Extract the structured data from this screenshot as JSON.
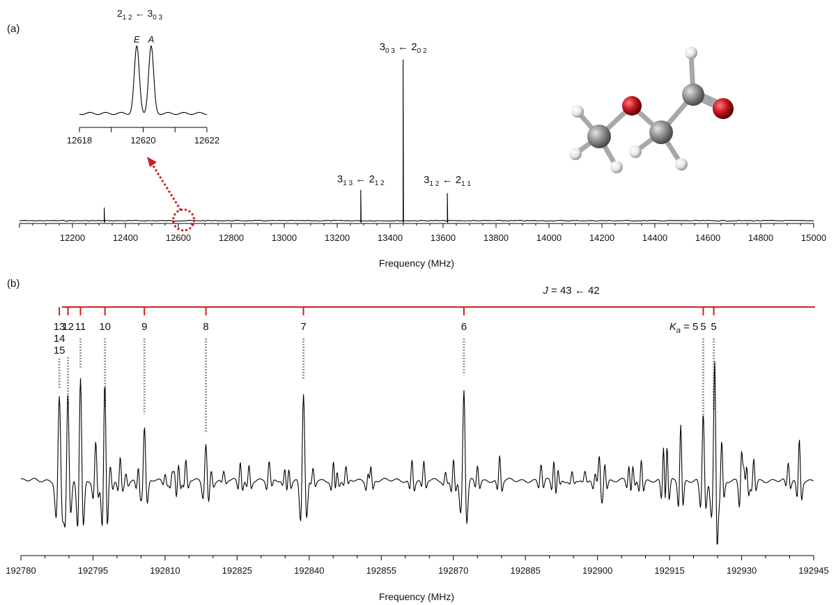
{
  "chart_data": [
    {
      "type": "line",
      "panel_label": "(a)",
      "xlabel": "Frequency (MHz)",
      "ylabel": "",
      "xlim": [
        12000,
        15000
      ],
      "x_ticks": [
        12200,
        12400,
        12600,
        12800,
        13000,
        13200,
        13400,
        13600,
        13800,
        14000,
        14200,
        14400,
        14600,
        14800,
        15000
      ],
      "grid": false,
      "peaks": [
        {
          "x": 12320,
          "y": 0.08
        },
        {
          "x": 13289,
          "y": 0.19
        },
        {
          "x": 13449,
          "y": 1.0
        },
        {
          "x": 13616,
          "y": 0.17
        }
      ],
      "annotations": [
        {
          "x": 13449,
          "label": "3",
          "sub": "0 3",
          "mid": " ← 2",
          "sub2": "0 2"
        },
        {
          "x": 13289,
          "label": "3",
          "sub": "1 3",
          "mid": " ← 2",
          "sub2": "1 2"
        },
        {
          "x": 13616,
          "label": "3",
          "sub": "1 2",
          "mid": " ← 2",
          "sub2": "1 1"
        }
      ],
      "highlight_x": 12620,
      "inset": {
        "type": "line",
        "title_parts": {
          "label": "2",
          "sub": "1 2",
          "mid": " ← 3",
          "sub2": "0 3"
        },
        "xlim": [
          12618,
          12622
        ],
        "x_ticks": [
          12618,
          12620,
          12622
        ],
        "peaks": [
          {
            "name": "E",
            "x": 12619.8,
            "y": 1.0
          },
          {
            "name": "A",
            "x": 12620.25,
            "y": 1.0
          }
        ]
      },
      "molecule": {
        "colors": {
          "carbon": "#8c8c8c",
          "oxygen": "#c0141c",
          "hydrogen": "#e6e6e6",
          "bond": "#a8a8a8"
        }
      }
    },
    {
      "type": "line",
      "panel_label": "(b)",
      "xlabel": "Frequency (MHz)",
      "ylabel": "",
      "xlim": [
        192780,
        192945
      ],
      "x_ticks": [
        192780,
        192795,
        192810,
        192825,
        192840,
        192855,
        192870,
        192885,
        192900,
        192915,
        192930,
        192945
      ],
      "grid": false,
      "ladder": {
        "title": "J = 43 ← 42",
        "title_j": "J",
        "title_rest": " = 43 ← 42",
        "color": "#cc1f1f",
        "ka_prefix": "K",
        "ka_sub": "a",
        "ka_eq": " = 5",
        "components": [
          {
            "x": 192788.0,
            "labels": [
              "13",
              "14",
              "15"
            ]
          },
          {
            "x": 192789.8,
            "labels": [
              "12"
            ]
          },
          {
            "x": 192792.4,
            "labels": [
              "11"
            ]
          },
          {
            "x": 192797.5,
            "labels": [
              "10"
            ]
          },
          {
            "x": 192805.7,
            "labels": [
              "9"
            ]
          },
          {
            "x": 192818.5,
            "labels": [
              "8"
            ]
          },
          {
            "x": 192838.8,
            "labels": [
              "7"
            ]
          },
          {
            "x": 192872.2,
            "labels": [
              "6"
            ]
          },
          {
            "x": 192922.0,
            "labels": [
              "5"
            ]
          },
          {
            "x": 192924.2,
            "labels": [
              "5"
            ]
          }
        ]
      },
      "peaks": [
        {
          "x": 192788.0,
          "y": 0.95,
          "w": 0.55
        },
        {
          "x": 192789.8,
          "y": 0.78,
          "w": 0.5
        },
        {
          "x": 192792.4,
          "y": 1.18,
          "w": 0.5
        },
        {
          "x": 192797.5,
          "y": 0.72,
          "w": 0.5
        },
        {
          "x": 192805.7,
          "y": 0.65,
          "w": 0.5
        },
        {
          "x": 192818.5,
          "y": 0.43,
          "w": 0.5
        },
        {
          "x": 192838.8,
          "y": 1.05,
          "w": 0.5
        },
        {
          "x": 192872.2,
          "y": 1.1,
          "w": 0.5
        },
        {
          "x": 192922.0,
          "y": 0.55,
          "w": 0.5
        },
        {
          "x": 192924.2,
          "y": 0.7,
          "w": 0.5
        }
      ]
    }
  ]
}
